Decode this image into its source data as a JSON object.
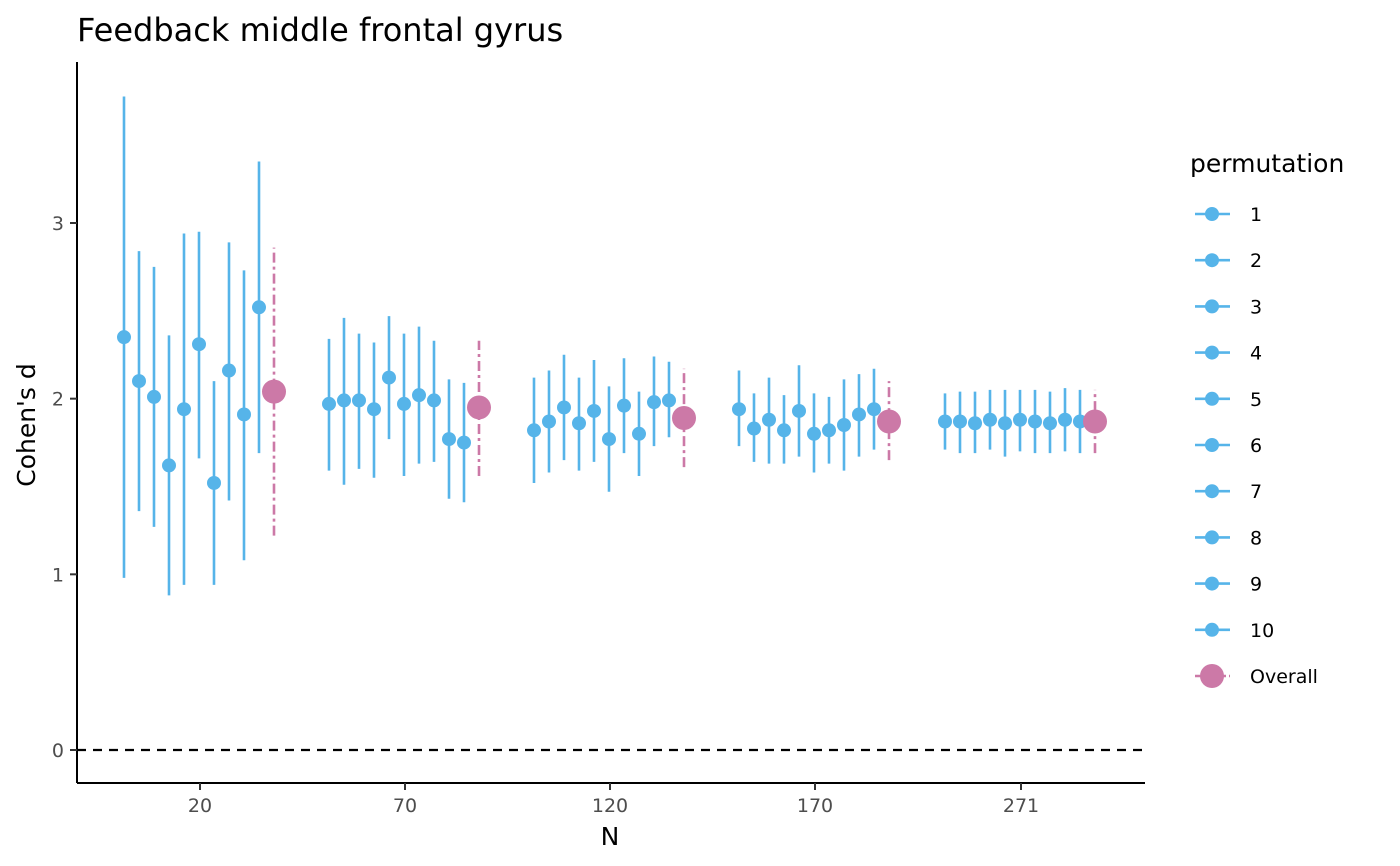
{
  "chart_data": {
    "type": "scatter",
    "title": "Feedback middle frontal gyrus",
    "xlabel": "N",
    "ylabel": "Cohen's d",
    "ylim": [
      -0.18,
      3.9
    ],
    "yticks": [
      0,
      1,
      2,
      3
    ],
    "x_groups": [
      "20",
      "70",
      "120",
      "170",
      "271"
    ],
    "reference_line": 0,
    "legend_title": "permutation",
    "legend_position": "right",
    "colors": {
      "permutation": "#56B4E9",
      "overall": "#CC79A7"
    },
    "groups": [
      {
        "n": "20",
        "permutations": [
          {
            "name": "1",
            "d": 2.35,
            "lo": 0.98,
            "hi": 3.72
          },
          {
            "name": "2",
            "d": 2.1,
            "lo": 1.36,
            "hi": 2.84
          },
          {
            "name": "3",
            "d": 2.01,
            "lo": 1.27,
            "hi": 2.75
          },
          {
            "name": "4",
            "d": 1.62,
            "lo": 0.88,
            "hi": 2.36
          },
          {
            "name": "5",
            "d": 1.94,
            "lo": 0.94,
            "hi": 2.94
          },
          {
            "name": "6",
            "d": 2.31,
            "lo": 1.66,
            "hi": 2.95
          },
          {
            "name": "7",
            "d": 1.52,
            "lo": 0.94,
            "hi": 2.1
          },
          {
            "name": "8",
            "d": 2.16,
            "lo": 1.42,
            "hi": 2.89
          },
          {
            "name": "9",
            "d": 1.91,
            "lo": 1.08,
            "hi": 2.73
          },
          {
            "name": "10",
            "d": 2.52,
            "lo": 1.69,
            "hi": 3.35
          }
        ],
        "overall": {
          "d": 2.04,
          "lo": 1.22,
          "hi": 2.86
        }
      },
      {
        "n": "70",
        "permutations": [
          {
            "name": "1",
            "d": 1.97,
            "lo": 1.59,
            "hi": 2.34
          },
          {
            "name": "2",
            "d": 1.99,
            "lo": 1.51,
            "hi": 2.46
          },
          {
            "name": "3",
            "d": 1.99,
            "lo": 1.6,
            "hi": 2.37
          },
          {
            "name": "4",
            "d": 1.94,
            "lo": 1.55,
            "hi": 2.32
          },
          {
            "name": "5",
            "d": 2.12,
            "lo": 1.77,
            "hi": 2.47
          },
          {
            "name": "6",
            "d": 1.97,
            "lo": 1.56,
            "hi": 2.37
          },
          {
            "name": "7",
            "d": 2.02,
            "lo": 1.63,
            "hi": 2.41
          },
          {
            "name": "8",
            "d": 1.99,
            "lo": 1.64,
            "hi": 2.33
          },
          {
            "name": "9",
            "d": 1.77,
            "lo": 1.43,
            "hi": 2.11
          },
          {
            "name": "10",
            "d": 1.75,
            "lo": 1.41,
            "hi": 2.09
          }
        ],
        "overall": {
          "d": 1.95,
          "lo": 1.56,
          "hi": 2.33
        }
      },
      {
        "n": "120",
        "permutations": [
          {
            "name": "1",
            "d": 1.82,
            "lo": 1.52,
            "hi": 2.12
          },
          {
            "name": "2",
            "d": 1.87,
            "lo": 1.58,
            "hi": 2.16
          },
          {
            "name": "3",
            "d": 1.95,
            "lo": 1.65,
            "hi": 2.25
          },
          {
            "name": "4",
            "d": 1.86,
            "lo": 1.59,
            "hi": 2.12
          },
          {
            "name": "5",
            "d": 1.93,
            "lo": 1.64,
            "hi": 2.22
          },
          {
            "name": "6",
            "d": 1.77,
            "lo": 1.47,
            "hi": 2.07
          },
          {
            "name": "7",
            "d": 1.96,
            "lo": 1.69,
            "hi": 2.23
          },
          {
            "name": "8",
            "d": 1.8,
            "lo": 1.56,
            "hi": 2.04
          },
          {
            "name": "9",
            "d": 1.98,
            "lo": 1.73,
            "hi": 2.24
          },
          {
            "name": "10",
            "d": 1.99,
            "lo": 1.78,
            "hi": 2.21
          }
        ],
        "overall": {
          "d": 1.89,
          "lo": 1.61,
          "hi": 2.17
        }
      },
      {
        "n": "170",
        "permutations": [
          {
            "name": "1",
            "d": 1.94,
            "lo": 1.73,
            "hi": 2.16
          },
          {
            "name": "2",
            "d": 1.83,
            "lo": 1.64,
            "hi": 2.03
          },
          {
            "name": "3",
            "d": 1.88,
            "lo": 1.63,
            "hi": 2.12
          },
          {
            "name": "4",
            "d": 1.82,
            "lo": 1.63,
            "hi": 2.02
          },
          {
            "name": "5",
            "d": 1.93,
            "lo": 1.67,
            "hi": 2.19
          },
          {
            "name": "6",
            "d": 1.8,
            "lo": 1.58,
            "hi": 2.03
          },
          {
            "name": "7",
            "d": 1.82,
            "lo": 1.63,
            "hi": 2.01
          },
          {
            "name": "8",
            "d": 1.85,
            "lo": 1.59,
            "hi": 2.11
          },
          {
            "name": "9",
            "d": 1.91,
            "lo": 1.67,
            "hi": 2.14
          },
          {
            "name": "10",
            "d": 1.94,
            "lo": 1.71,
            "hi": 2.17
          }
        ],
        "overall": {
          "d": 1.87,
          "lo": 1.65,
          "hi": 2.1
        }
      },
      {
        "n": "271",
        "permutations": [
          {
            "name": "1",
            "d": 1.87,
            "lo": 1.71,
            "hi": 2.03
          },
          {
            "name": "2",
            "d": 1.87,
            "lo": 1.69,
            "hi": 2.04
          },
          {
            "name": "3",
            "d": 1.86,
            "lo": 1.69,
            "hi": 2.04
          },
          {
            "name": "4",
            "d": 1.88,
            "lo": 1.71,
            "hi": 2.05
          },
          {
            "name": "5",
            "d": 1.86,
            "lo": 1.67,
            "hi": 2.05
          },
          {
            "name": "6",
            "d": 1.88,
            "lo": 1.7,
            "hi": 2.05
          },
          {
            "name": "7",
            "d": 1.87,
            "lo": 1.69,
            "hi": 2.05
          },
          {
            "name": "8",
            "d": 1.86,
            "lo": 1.69,
            "hi": 2.04
          },
          {
            "name": "9",
            "d": 1.88,
            "lo": 1.7,
            "hi": 2.06
          },
          {
            "name": "10",
            "d": 1.87,
            "lo": 1.69,
            "hi": 2.05
          }
        ],
        "overall": {
          "d": 1.87,
          "lo": 1.69,
          "hi": 2.05
        }
      }
    ],
    "legend_entries": [
      "1",
      "2",
      "3",
      "4",
      "5",
      "6",
      "7",
      "8",
      "9",
      "10",
      "Overall"
    ]
  }
}
